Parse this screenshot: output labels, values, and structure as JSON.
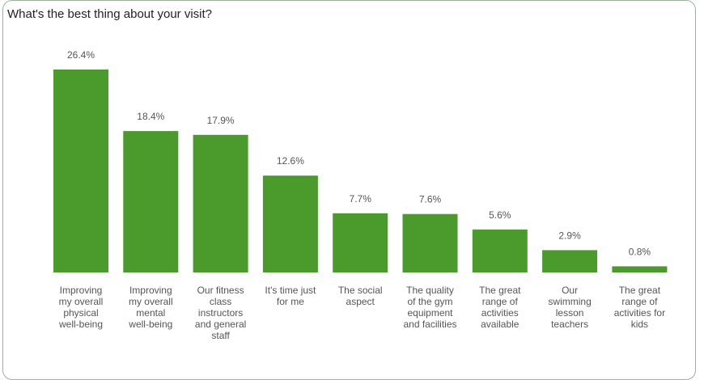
{
  "chart_data": {
    "type": "bar",
    "title": "What's the best thing about your visit?",
    "categories": [
      "Improving my overall physical well-being",
      "Improving my overall mental well-being",
      "Our fitness class instructors and general staff",
      "It's time just for me",
      "The social aspect",
      "The quality of the gym equipment and facilities",
      "The great range of activities available",
      "Our swimming lesson teachers",
      "The great range of activities for kids"
    ],
    "category_lines": [
      [
        "Improving",
        "my overall",
        "physical",
        "well-being"
      ],
      [
        "Improving",
        "my overall",
        "mental",
        "well-being"
      ],
      [
        "Our fitness",
        "class",
        "instructors",
        "and general",
        "staff"
      ],
      [
        "It's time just",
        "for me"
      ],
      [
        "The social",
        "aspect"
      ],
      [
        "The quality",
        "of the gym",
        "equipment",
        "and facilities"
      ],
      [
        "The great",
        "range of",
        "activities",
        "available"
      ],
      [
        "Our",
        "swimming",
        "lesson",
        "teachers"
      ],
      [
        "The great",
        "range of",
        "activities for",
        "kids"
      ]
    ],
    "values": [
      26.4,
      18.4,
      17.9,
      12.6,
      7.7,
      7.6,
      5.6,
      2.9,
      0.8
    ],
    "value_labels": [
      "26.4%",
      "18.4%",
      "17.9%",
      "12.6%",
      "7.7%",
      "7.6%",
      "5.6%",
      "2.9%",
      "0.8%"
    ],
    "ylim": [
      0,
      26.4
    ],
    "bar_color": "#4a9a2c",
    "grid": false,
    "legend": "none"
  }
}
